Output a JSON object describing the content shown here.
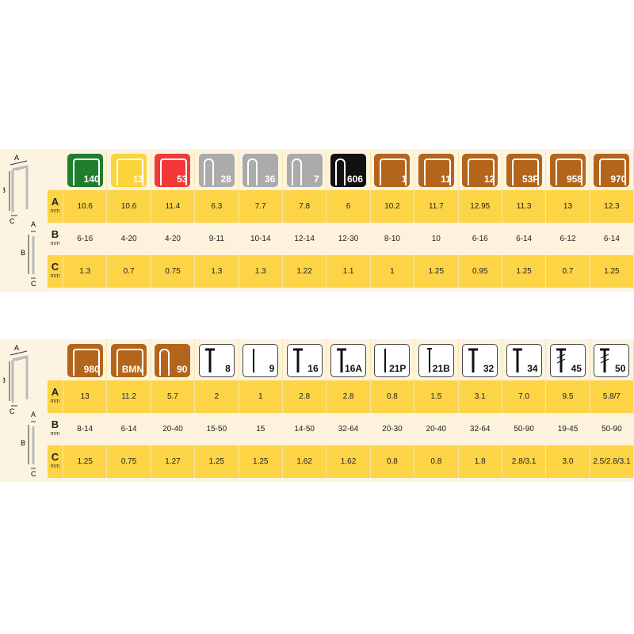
{
  "colors": {
    "green": "#1f7d2e",
    "yellow": "#fbd43a",
    "red": "#f23838",
    "gray": "#ababab",
    "black": "#111111",
    "brown": "#b4651c",
    "white": "#ffffff"
  },
  "row_labels": [
    {
      "letter": "A",
      "unit": "mm"
    },
    {
      "letter": "B",
      "unit": "mm"
    },
    {
      "letter": "C",
      "unit": "mm"
    }
  ],
  "diagram_labels": {
    "a": "A",
    "b": "B",
    "c": "C"
  },
  "tables": [
    {
      "items": [
        {
          "type": "140",
          "color": "green",
          "shape": "wide",
          "A": "10.6",
          "B": "6-16",
          "C": "1.3"
        },
        {
          "type": "13",
          "color": "yellow",
          "shape": "wide",
          "A": "10.6",
          "B": "4-20",
          "C": "0.7"
        },
        {
          "type": "53",
          "color": "red",
          "shape": "wide",
          "A": "11.4",
          "B": "4-20",
          "C": "0.75"
        },
        {
          "type": "28",
          "color": "gray",
          "shape": "narrow",
          "A": "6.3",
          "B": "9-11",
          "C": "1.3"
        },
        {
          "type": "36",
          "color": "gray",
          "shape": "narrow",
          "A": "7.7",
          "B": "10-14",
          "C": "1.3"
        },
        {
          "type": "7",
          "color": "gray",
          "shape": "narrow",
          "A": "7.8",
          "B": "12-14",
          "C": "1.22"
        },
        {
          "type": "606",
          "color": "black",
          "shape": "narrow",
          "A": "6",
          "B": "12-30",
          "C": "1.1"
        },
        {
          "type": "1",
          "color": "brown",
          "shape": "wide",
          "A": "10.2",
          "B": "8-10",
          "C": "1"
        },
        {
          "type": "11",
          "color": "brown",
          "shape": "wide",
          "A": "11.7",
          "B": "10",
          "C": "1.25"
        },
        {
          "type": "12",
          "color": "brown",
          "shape": "wide",
          "A": "12.95",
          "B": "6-16",
          "C": "0.95"
        },
        {
          "type": "53F",
          "color": "brown",
          "shape": "wide",
          "A": "11.3",
          "B": "6-14",
          "C": "1.25"
        },
        {
          "type": "958",
          "color": "brown",
          "shape": "wide",
          "A": "13",
          "B": "6-12",
          "C": "0.7"
        },
        {
          "type": "970",
          "color": "brown",
          "shape": "wide",
          "A": "12.3",
          "B": "6-14",
          "C": "1.25"
        }
      ]
    },
    {
      "items": [
        {
          "type": "980",
          "color": "brown",
          "shape": "wide",
          "A": "13",
          "B": "8-14",
          "C": "1.25"
        },
        {
          "type": "BMN",
          "color": "brown",
          "shape": "wide",
          "A": "11.2",
          "B": "6-14",
          "C": "0.75"
        },
        {
          "type": "90",
          "color": "brown",
          "shape": "narrow",
          "A": "5.7",
          "B": "20-40",
          "C": "1.27"
        },
        {
          "type": "8",
          "color": "white",
          "shape": "nail",
          "A": "2",
          "B": "15-50",
          "C": "1.25"
        },
        {
          "type": "9",
          "color": "white",
          "shape": "pin",
          "A": "1",
          "B": "15",
          "C": "1.25"
        },
        {
          "type": "16",
          "color": "white",
          "shape": "nail",
          "A": "2.8",
          "B": "14-50",
          "C": "1.62"
        },
        {
          "type": "16A",
          "color": "white",
          "shape": "nail",
          "A": "2.8",
          "B": "32-64",
          "C": "1.62"
        },
        {
          "type": "21P",
          "color": "white",
          "shape": "pin",
          "A": "0.8",
          "B": "20-30",
          "C": "0.8"
        },
        {
          "type": "21B",
          "color": "white",
          "shape": "brad",
          "A": "1.5",
          "B": "20-40",
          "C": "0.8"
        },
        {
          "type": "32",
          "color": "white",
          "shape": "nail",
          "A": "3.1",
          "B": "32-64",
          "C": "1.8"
        },
        {
          "type": "34",
          "color": "white",
          "shape": "nail",
          "A": "7.0",
          "B": "50-90",
          "C": "2.8/3.1"
        },
        {
          "type": "45",
          "color": "white",
          "shape": "screw",
          "A": "9.5",
          "B": "19-45",
          "C": "3.0"
        },
        {
          "type": "50",
          "color": "white",
          "shape": "screw",
          "A": "5.8/7",
          "B": "50-90",
          "C": "2.5/2.8/3.1"
        }
      ]
    }
  ]
}
